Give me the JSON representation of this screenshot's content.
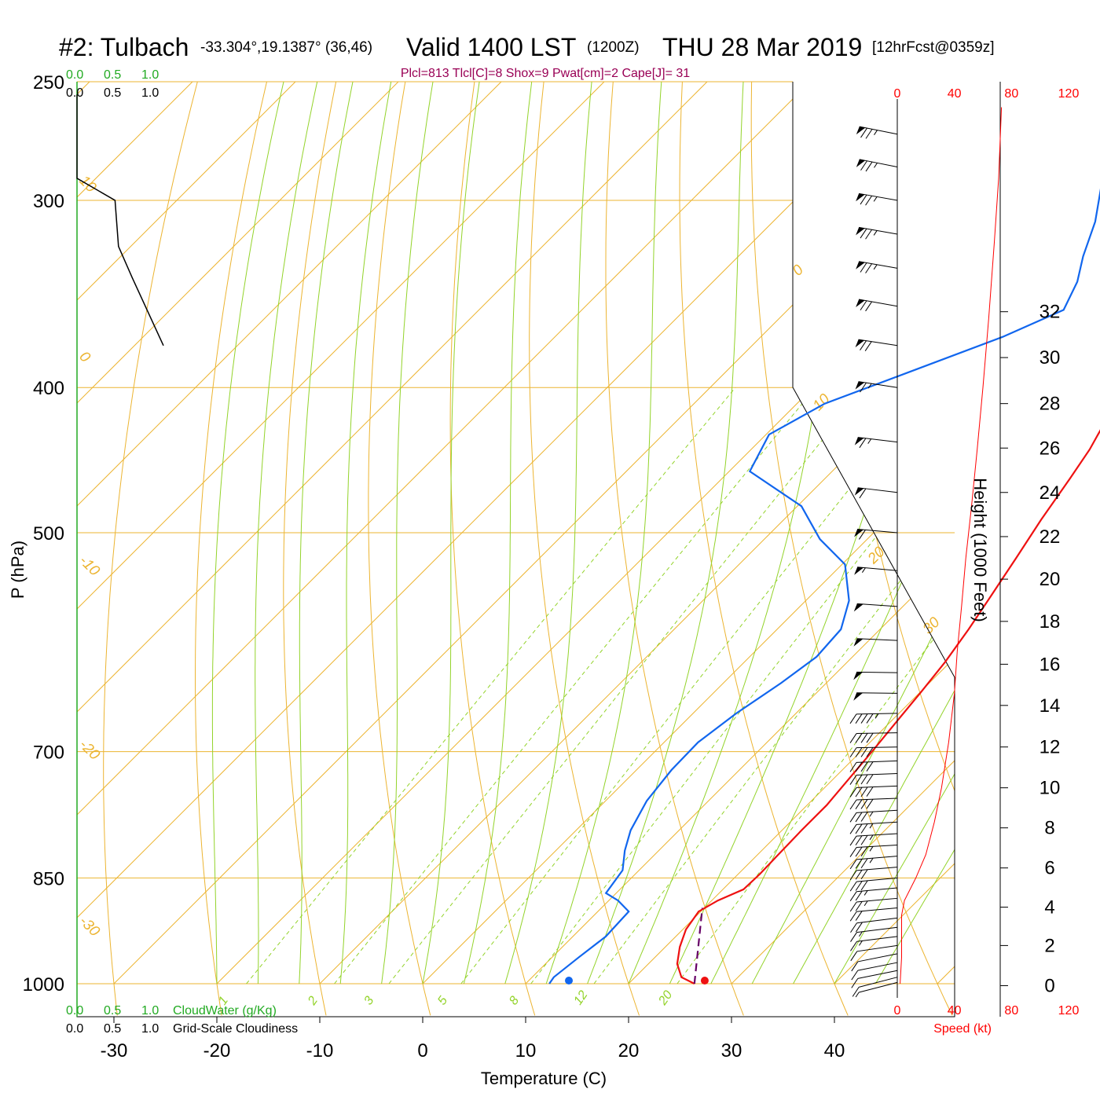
{
  "header": {
    "station": "#2: Tulbach",
    "coords": "-33.304°,19.1387° (36,46)",
    "valid": "Valid 1400 LST",
    "zulu": "(1200Z)",
    "date": "THU 28 Mar 2019",
    "forecast": "[12hrFcst@0359z]",
    "indices": "Plcl=813 Tlcl[C]=8 Shox=9 Pwat[cm]=2 Cape[J]= 31"
  },
  "colors": {
    "isotherm": "#ecb431",
    "dry_adiabat": "#ecb431",
    "moist_adiabat": "#93d32a",
    "mixing_ratio": "#93d32a",
    "temperature": "#ee1111",
    "dewpoint": "#1166ee",
    "parcel": "#660066",
    "cloud_green": "#22aa22",
    "speed": "#ff0000"
  },
  "chart_data": {
    "type": "line",
    "title": "#2: Tulbach",
    "xlabel": "Temperature (C)",
    "ylabel": "P (hPa)",
    "x_ticks": [
      "-30",
      "-20",
      "-10",
      "0",
      "10",
      "20",
      "30",
      "40"
    ],
    "x_tick_values": [
      -30,
      -20,
      -10,
      0,
      10,
      20,
      30,
      40
    ],
    "y_ticks": [
      "250",
      "300",
      "400",
      "500",
      "700",
      "850",
      "1000"
    ],
    "y_tick_values": [
      250,
      300,
      400,
      500,
      700,
      850,
      1000
    ],
    "ylim": [
      250,
      1000
    ],
    "log_pressure": true,
    "isotherm_labels": [
      {
        "text": "10",
        "t": 10
      },
      {
        "text": "0",
        "t": 0
      },
      {
        "text": "-10",
        "t": -10
      },
      {
        "text": "-20",
        "t": -20
      },
      {
        "text": "-30",
        "t": -30
      },
      {
        "text": "10",
        "t": 10
      },
      {
        "text": "20",
        "t": 20
      },
      {
        "text": "30",
        "t": 30
      }
    ],
    "mixing_ratio_labels": [
      "1",
      "2",
      "3",
      "5",
      "8",
      "12",
      "20"
    ],
    "mixing_ratio_values": [
      1,
      2,
      3,
      5,
      8,
      12,
      20
    ],
    "series": [
      {
        "name": "Temperature",
        "points": [
          [
            26.4,
            1000
          ],
          [
            24.5,
            990
          ],
          [
            22.8,
            970
          ],
          [
            21.4,
            945
          ],
          [
            20.3,
            920
          ],
          [
            19.8,
            895
          ],
          [
            20.6,
            880
          ],
          [
            22.0,
            865
          ],
          [
            22.1,
            845
          ],
          [
            22.0,
            820
          ],
          [
            21.9,
            790
          ],
          [
            21.9,
            760
          ],
          [
            21.5,
            730
          ],
          [
            21.1,
            700
          ],
          [
            20.6,
            670
          ],
          [
            20.1,
            640
          ],
          [
            19.5,
            610
          ],
          [
            18.6,
            580
          ],
          [
            17.5,
            550
          ],
          [
            16.3,
            520
          ],
          [
            15.0,
            490
          ],
          [
            13.8,
            460
          ],
          [
            12.9,
            440
          ],
          [
            11.6,
            420
          ],
          [
            10.2,
            400
          ],
          [
            8.7,
            380
          ],
          [
            7.1,
            360
          ],
          [
            5.6,
            345
          ],
          [
            4.1,
            330
          ],
          [
            2.5,
            315
          ],
          [
            1.0,
            300
          ],
          [
            -0.6,
            290
          ],
          [
            -2.3,
            278
          ],
          [
            -3.9,
            266
          ],
          [
            -5.2,
            255
          ]
        ]
      },
      {
        "name": "Dewpoint",
        "points": [
          [
            12.3,
            1000
          ],
          [
            12.1,
            990
          ],
          [
            12.6,
            960
          ],
          [
            13.2,
            930
          ],
          [
            13.0,
            895
          ],
          [
            10.9,
            880
          ],
          [
            9.0,
            870
          ],
          [
            8.4,
            840
          ],
          [
            6.7,
            815
          ],
          [
            5.3,
            790
          ],
          [
            4.0,
            755
          ],
          [
            3.4,
            720
          ],
          [
            3.3,
            690
          ],
          [
            4.2,
            660
          ],
          [
            5.6,
            630
          ],
          [
            6.5,
            605
          ],
          [
            6.2,
            580
          ],
          [
            4.2,
            555
          ],
          [
            0.3,
            525
          ],
          [
            -4.6,
            505
          ],
          [
            -9.6,
            480
          ],
          [
            -18.0,
            455
          ],
          [
            -19.7,
            430
          ],
          [
            -17.3,
            410
          ],
          [
            -12.0,
            390
          ],
          [
            -6.5,
            370
          ],
          [
            -3.2,
            355
          ],
          [
            -4.6,
            340
          ],
          [
            -6.5,
            327
          ],
          [
            -8.7,
            310
          ],
          [
            -11.3,
            295
          ],
          [
            -14.1,
            280
          ],
          [
            -17.2,
            265
          ],
          [
            -20.2,
            255
          ]
        ]
      },
      {
        "name": "Parcel",
        "points": [
          [
            26.4,
            1000
          ],
          [
            19.8,
            890
          ]
        ]
      },
      {
        "name": "Cloudiness",
        "points": [
          [
            0.0,
            255
          ],
          [
            0.0,
            290
          ],
          [
            0.55,
            300
          ],
          [
            0.6,
            322
          ],
          [
            0.8,
            338
          ],
          [
            1.25,
            375
          ]
        ]
      }
    ],
    "surface_markers": [
      {
        "name": "Surface temperature",
        "t": 27.4,
        "p": 1000
      },
      {
        "name": "Surface dewpoint",
        "t": 14.2,
        "p": 1000
      }
    ],
    "cloud_scale": {
      "water_ticks": [
        "0.0",
        "0.5",
        "1.0"
      ],
      "water_label": "CloudWater (g/Kg)",
      "cover_ticks": [
        "0.0",
        "0.5",
        "1.0"
      ],
      "cover_label": "Grid-Scale Cloudiness"
    },
    "height_axis": {
      "label": "Height (1000 Feet)",
      "ticks": [
        "0",
        "2",
        "4",
        "6",
        "8",
        "10",
        "12",
        "14",
        "16",
        "18",
        "20",
        "22",
        "24",
        "26",
        "28",
        "30",
        "32"
      ],
      "values": [
        0,
        2,
        4,
        6,
        8,
        10,
        12,
        14,
        16,
        18,
        20,
        22,
        24,
        26,
        28,
        30,
        32
      ],
      "pressure_at": [
        1003,
        943,
        889,
        837,
        787,
        740,
        695,
        652,
        612,
        573,
        537,
        503,
        470,
        439,
        410,
        382,
        356
      ]
    },
    "wind_speed": {
      "label": "Speed (kt)",
      "ticks": [
        "0",
        "40",
        "80",
        "120"
      ],
      "values": [
        0,
        40,
        80,
        120
      ],
      "xlim": [
        0,
        120
      ],
      "profile": [
        [
          2,
          1000
        ],
        [
          3,
          960
        ],
        [
          3,
          900
        ],
        [
          5,
          880
        ],
        [
          13,
          850
        ],
        [
          20,
          820
        ],
        [
          26,
          780
        ],
        [
          31,
          740
        ],
        [
          36,
          690
        ],
        [
          40,
          640
        ],
        [
          42,
          600
        ],
        [
          45,
          560
        ],
        [
          48,
          520
        ],
        [
          52,
          480
        ],
        [
          56,
          440
        ],
        [
          60,
          400
        ],
        [
          64,
          360
        ],
        [
          68,
          320
        ],
        [
          71,
          290
        ],
        [
          73,
          260
        ]
      ]
    },
    "wind_barbs": [
      {
        "p": 998,
        "speed": 7,
        "dir": 250
      },
      {
        "p": 990,
        "speed": 8,
        "dir": 250
      },
      {
        "p": 980,
        "speed": 9,
        "dir": 255
      },
      {
        "p": 968,
        "speed": 10,
        "dir": 255
      },
      {
        "p": 955,
        "speed": 11,
        "dir": 255
      },
      {
        "p": 943,
        "speed": 12,
        "dir": 260
      },
      {
        "p": 930,
        "speed": 14,
        "dir": 262
      },
      {
        "p": 917,
        "speed": 16,
        "dir": 262
      },
      {
        "p": 904,
        "speed": 18,
        "dir": 262
      },
      {
        "p": 890,
        "speed": 21,
        "dir": 265
      },
      {
        "p": 877,
        "speed": 24,
        "dir": 265
      },
      {
        "p": 863,
        "speed": 27,
        "dir": 265
      },
      {
        "p": 850,
        "speed": 29,
        "dir": 265
      },
      {
        "p": 836,
        "speed": 31,
        "dir": 266
      },
      {
        "p": 822,
        "speed": 33,
        "dir": 266
      },
      {
        "p": 808,
        "speed": 34,
        "dir": 268
      },
      {
        "p": 794,
        "speed": 35,
        "dir": 268
      },
      {
        "p": 780,
        "speed": 36,
        "dir": 268
      },
      {
        "p": 766,
        "speed": 37,
        "dir": 268
      },
      {
        "p": 752,
        "speed": 38,
        "dir": 270
      },
      {
        "p": 738,
        "speed": 38,
        "dir": 270
      },
      {
        "p": 724,
        "speed": 39,
        "dir": 270
      },
      {
        "p": 710,
        "speed": 40,
        "dir": 270
      },
      {
        "p": 695,
        "speed": 41,
        "dir": 272
      },
      {
        "p": 680,
        "speed": 42,
        "dir": 272
      },
      {
        "p": 660,
        "speed": 44,
        "dir": 272
      },
      {
        "p": 640,
        "speed": 46,
        "dir": 275
      },
      {
        "p": 620,
        "speed": 48,
        "dir": 275
      },
      {
        "p": 590,
        "speed": 50,
        "dir": 278
      },
      {
        "p": 560,
        "speed": 52,
        "dir": 280
      },
      {
        "p": 530,
        "speed": 55,
        "dir": 282
      },
      {
        "p": 500,
        "speed": 58,
        "dir": 282
      },
      {
        "p": 470,
        "speed": 61,
        "dir": 285
      },
      {
        "p": 435,
        "speed": 64,
        "dir": 285
      },
      {
        "p": 400,
        "speed": 67,
        "dir": 288
      },
      {
        "p": 375,
        "speed": 70,
        "dir": 288
      },
      {
        "p": 353,
        "speed": 72,
        "dir": 290
      },
      {
        "p": 333,
        "speed": 73,
        "dir": 290
      },
      {
        "p": 316,
        "speed": 74,
        "dir": 290
      },
      {
        "p": 300,
        "speed": 74,
        "dir": 290
      },
      {
        "p": 285,
        "speed": 74,
        "dir": 292
      },
      {
        "p": 271,
        "speed": 74,
        "dir": 292
      }
    ]
  }
}
